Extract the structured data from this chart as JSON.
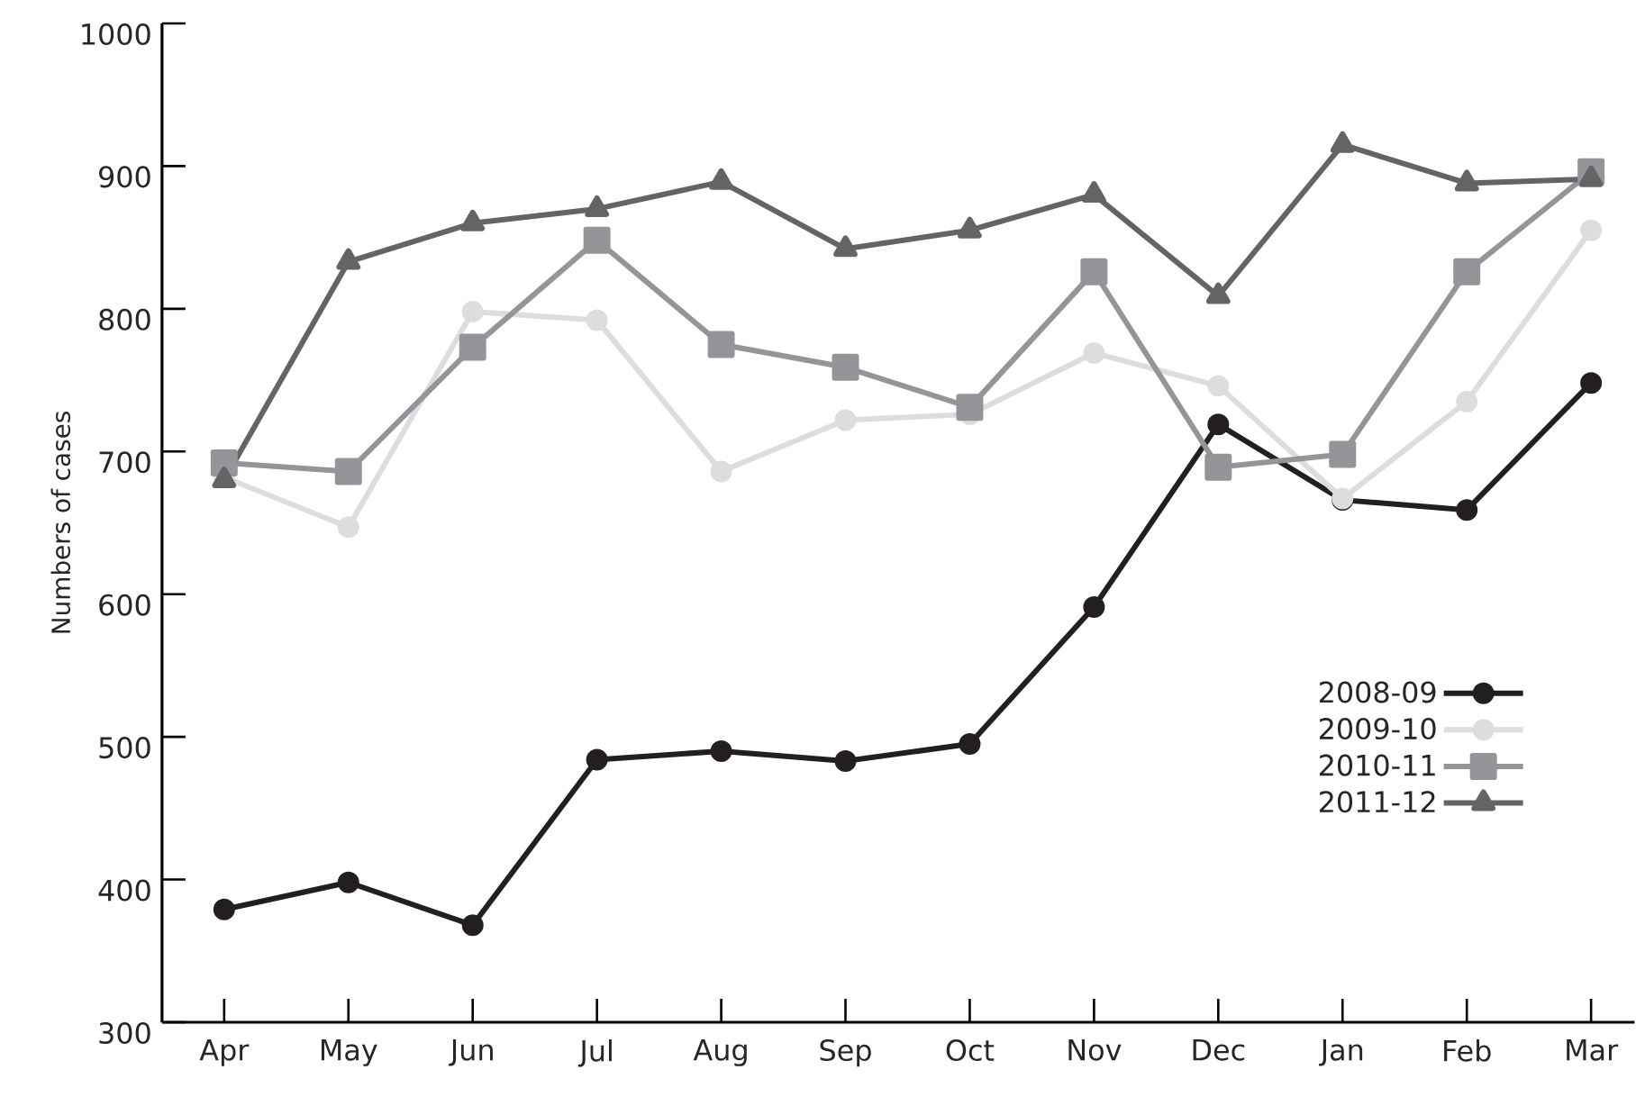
{
  "chart_data": {
    "type": "line",
    "ylabel": "Numbers of cases",
    "categories": [
      "Apr",
      "May",
      "Jun",
      "Jul",
      "Aug",
      "Sep",
      "Oct",
      "Nov",
      "Dec",
      "Jan",
      "Feb",
      "Mar"
    ],
    "ylim": [
      300,
      1000
    ],
    "yticks": [
      300,
      400,
      500,
      600,
      700,
      800,
      900,
      1000
    ],
    "grid": false,
    "legend": "bottom right",
    "line_style": "solid",
    "series": [
      {
        "name": "2008-09",
        "color": "#231f20",
        "marker": "circle",
        "values": [
          379,
          398,
          368,
          484,
          490,
          483,
          495,
          591,
          719,
          666,
          659,
          748
        ]
      },
      {
        "name": "2009-10",
        "color": "#dcdddf",
        "marker": "circle",
        "values": [
          682,
          647,
          798,
          792,
          686,
          722,
          726,
          769,
          746,
          667,
          735,
          855
        ]
      },
      {
        "name": "2010-11",
        "color": "#939598",
        "marker": "square",
        "values": [
          692,
          686,
          773,
          848,
          775,
          759,
          731,
          826,
          689,
          698,
          826,
          896
        ]
      },
      {
        "name": "2011-12",
        "color": "#636466",
        "marker": "triangle",
        "values": [
          680,
          833,
          860,
          870,
          889,
          842,
          855,
          880,
          809,
          915,
          888,
          891
        ]
      }
    ]
  }
}
